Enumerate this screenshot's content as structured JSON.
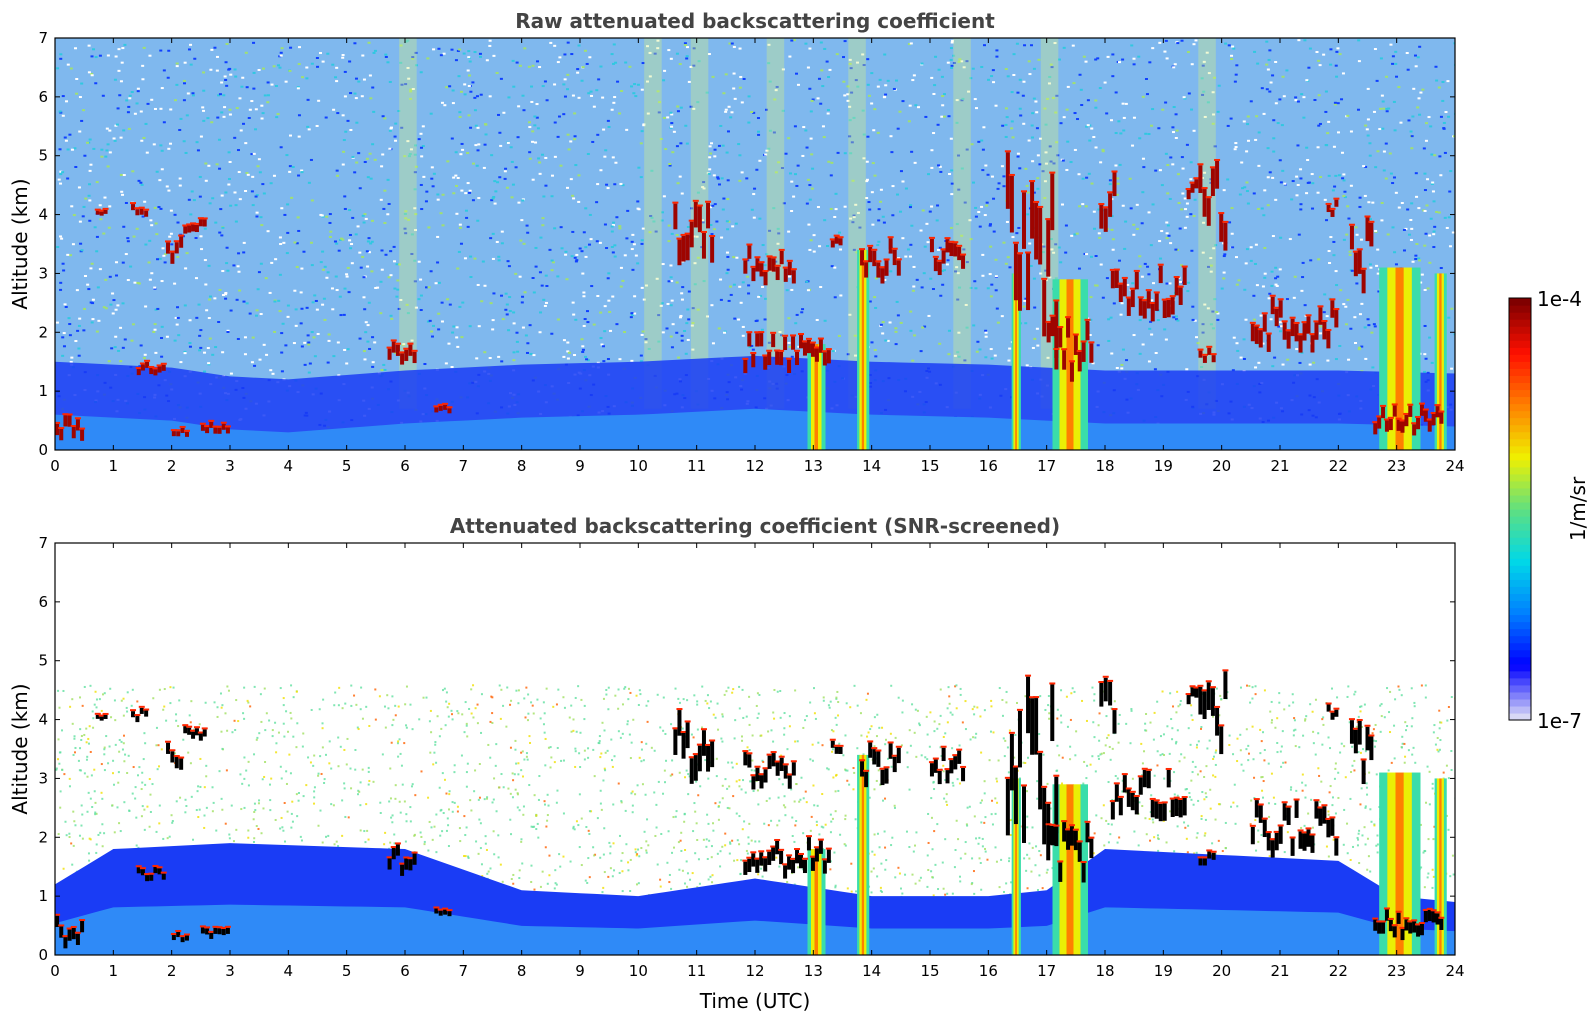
{
  "chart_data": [
    {
      "type": "heatmap",
      "title": "Raw attenuated backscattering coefficient",
      "xlabel": "",
      "ylabel": "Altitude (km)",
      "xlim": [
        0,
        24
      ],
      "ylim": [
        0,
        7
      ],
      "x_ticks": [
        "0",
        "1",
        "2",
        "3",
        "4",
        "5",
        "6",
        "7",
        "8",
        "9",
        "10",
        "11",
        "12",
        "13",
        "14",
        "15",
        "16",
        "17",
        "18",
        "19",
        "20",
        "21",
        "22",
        "23",
        "24"
      ],
      "y_ticks": [
        "0",
        "1",
        "2",
        "3",
        "4",
        "5",
        "6",
        "7"
      ],
      "screened": false,
      "boundary_layer_top_km": [
        [
          0,
          0.6
        ],
        [
          2,
          0.5
        ],
        [
          3,
          0.35
        ],
        [
          4,
          0.3
        ],
        [
          6,
          0.45
        ],
        [
          8,
          0.55
        ],
        [
          10,
          0.6
        ],
        [
          12,
          0.7
        ],
        [
          14,
          0.6
        ],
        [
          16,
          0.55
        ],
        [
          18,
          0.45
        ],
        [
          20,
          0.45
        ],
        [
          22,
          0.45
        ],
        [
          24,
          0.4
        ]
      ],
      "cloud_layers": [
        {
          "t": [
            0.7,
            0.9
          ],
          "z": [
            4.0,
            4.05
          ]
        },
        {
          "t": [
            1.3,
            1.6
          ],
          "z": [
            4.0,
            4.15
          ]
        },
        {
          "t": [
            1.9,
            2.2
          ],
          "z": [
            3.2,
            3.6
          ]
        },
        {
          "t": [
            2.2,
            2.6
          ],
          "z": [
            3.7,
            3.9
          ]
        },
        {
          "t": [
            1.4,
            1.9
          ],
          "z": [
            1.3,
            1.45
          ]
        },
        {
          "t": [
            2.0,
            2.3
          ],
          "z": [
            0.25,
            0.35
          ]
        },
        {
          "t": [
            2.5,
            3.0
          ],
          "z": [
            0.3,
            0.45
          ]
        },
        {
          "t": [
            0.0,
            0.5
          ],
          "z": [
            0.2,
            0.6
          ]
        },
        {
          "t": [
            5.7,
            6.2
          ],
          "z": [
            1.4,
            1.8
          ]
        },
        {
          "t": [
            6.5,
            6.8
          ],
          "z": [
            0.65,
            0.75
          ]
        },
        {
          "t": [
            10.6,
            11.3
          ],
          "z": [
            2.9,
            4.0
          ]
        },
        {
          "t": [
            11.8,
            12.7
          ],
          "z": [
            2.9,
            3.4
          ]
        },
        {
          "t": [
            11.8,
            13.3
          ],
          "z": [
            1.4,
            1.9
          ]
        },
        {
          "t": [
            13.3,
            13.5
          ],
          "z": [
            3.4,
            3.6
          ]
        },
        {
          "t": [
            13.8,
            14.5
          ],
          "z": [
            2.9,
            3.5
          ]
        },
        {
          "t": [
            15.0,
            15.6
          ],
          "z": [
            3.0,
            3.5
          ]
        },
        {
          "t": [
            16.3,
            17.2
          ],
          "z": [
            2.0,
            4.6
          ]
        },
        {
          "t": [
            17.0,
            17.8
          ],
          "z": [
            1.3,
            2.1
          ]
        },
        {
          "t": [
            17.9,
            18.2
          ],
          "z": [
            3.8,
            4.8
          ]
        },
        {
          "t": [
            18.1,
            19.4
          ],
          "z": [
            2.3,
            3.0
          ]
        },
        {
          "t": [
            19.4,
            19.6
          ],
          "z": [
            4.3,
            4.6
          ]
        },
        {
          "t": [
            19.6,
            20.1
          ],
          "z": [
            3.5,
            4.7
          ]
        },
        {
          "t": [
            19.6,
            19.9
          ],
          "z": [
            1.5,
            1.7
          ]
        },
        {
          "t": [
            20.5,
            22.0
          ],
          "z": [
            1.8,
            2.5
          ]
        },
        {
          "t": [
            21.8,
            22.0
          ],
          "z": [
            4.0,
            4.2
          ]
        },
        {
          "t": [
            22.2,
            22.6
          ],
          "z": [
            2.8,
            3.8
          ]
        },
        {
          "t": [
            22.6,
            23.8
          ],
          "z": [
            0.3,
            0.7
          ]
        }
      ],
      "precip_columns": [
        {
          "t": [
            12.9,
            13.2
          ],
          "top": 1.8
        },
        {
          "t": [
            13.75,
            13.95
          ],
          "top": 3.4
        },
        {
          "t": [
            16.4,
            16.55
          ],
          "top": 3.0
        },
        {
          "t": [
            17.1,
            17.7
          ],
          "top": 2.9
        },
        {
          "t": [
            22.7,
            23.4
          ],
          "top": 3.1
        },
        {
          "t": [
            23.65,
            23.85
          ],
          "top": 3.0
        }
      ]
    },
    {
      "type": "heatmap",
      "title": "Attenuated backscattering coefficient (SNR-screened)",
      "xlabel": "Time (UTC)",
      "ylabel": "Altitude (km)",
      "xlim": [
        0,
        24
      ],
      "ylim": [
        0,
        7
      ],
      "x_ticks": [
        "0",
        "1",
        "2",
        "3",
        "4",
        "5",
        "6",
        "7",
        "8",
        "9",
        "10",
        "11",
        "12",
        "13",
        "14",
        "15",
        "16",
        "17",
        "18",
        "19",
        "20",
        "21",
        "22",
        "23",
        "24"
      ],
      "y_ticks": [
        "0",
        "1",
        "2",
        "3",
        "4",
        "5",
        "6",
        "7"
      ],
      "screened": true,
      "screened_blue_top_km": [
        [
          0,
          1.2
        ],
        [
          1,
          1.8
        ],
        [
          3,
          1.9
        ],
        [
          6,
          1.8
        ],
        [
          8,
          1.1
        ],
        [
          10,
          1.0
        ],
        [
          12,
          1.3
        ],
        [
          14,
          1.0
        ],
        [
          16,
          1.0
        ],
        [
          17,
          1.1
        ],
        [
          18,
          1.8
        ],
        [
          20,
          1.7
        ],
        [
          22,
          1.6
        ],
        [
          23,
          1.0
        ],
        [
          24,
          0.9
        ]
      ],
      "colorbar": {
        "label": "1/m/sr",
        "min_label": "1e-7",
        "max_label": "1e-4",
        "scale": "log",
        "colormap": [
          "#d8d8f6",
          "#0000ff",
          "#0080ff",
          "#00d8e8",
          "#60e080",
          "#f0f000",
          "#ff8000",
          "#ff1000",
          "#800000"
        ]
      }
    }
  ]
}
